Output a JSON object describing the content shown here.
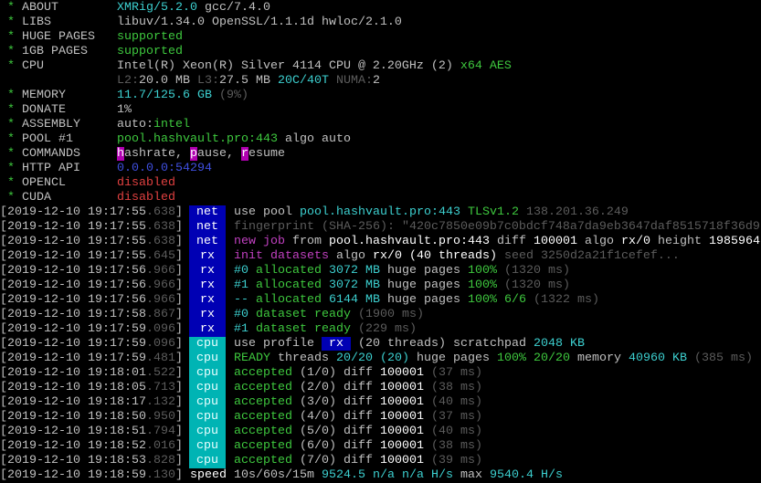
{
  "colors": {
    "tag_blue": "#0000b4",
    "tag_cyan": "#00b4b4",
    "green": "#3ec83e",
    "cyan": "#3ccfcf",
    "magenta": "#c040c0",
    "red": "#e04040",
    "dim": "#5c5c5c"
  },
  "header": [
    {
      "label": "ABOUT",
      "segs": [
        [
          "XMRig/5.2.0",
          "c"
        ],
        [
          " gcc/7.4.0",
          "w"
        ]
      ]
    },
    {
      "label": "LIBS",
      "segs": [
        [
          "libuv/1.34.0 OpenSSL/1.1.1d hwloc/2.1.0",
          "w"
        ]
      ]
    },
    {
      "label": "HUGE PAGES",
      "segs": [
        [
          "supported",
          "g"
        ]
      ]
    },
    {
      "label": "1GB PAGES",
      "segs": [
        [
          "supported",
          "g"
        ]
      ]
    },
    {
      "label": "CPU",
      "segs": [
        [
          "Intel(R) Xeon(R) Silver 4114 CPU @ 2.20GHz (2)",
          "w"
        ],
        [
          " x64 AES",
          "g"
        ]
      ]
    },
    {
      "label": "",
      "segs": [
        [
          "L2:",
          "d"
        ],
        [
          "20.0 MB ",
          "w"
        ],
        [
          "L3:",
          "d"
        ],
        [
          "27.5 MB ",
          "w"
        ],
        [
          "20C/40T",
          "c"
        ],
        [
          " NUMA:",
          "d"
        ],
        [
          "2",
          "w"
        ]
      ]
    },
    {
      "label": "MEMORY",
      "segs": [
        [
          "11.7/125.6 GB",
          "c"
        ],
        [
          " (9%)",
          "d"
        ]
      ]
    },
    {
      "label": "DONATE",
      "segs": [
        [
          "1%",
          "w"
        ]
      ]
    },
    {
      "label": "ASSEMBLY",
      "segs": [
        [
          "auto:",
          "w"
        ],
        [
          "intel",
          "g"
        ]
      ]
    },
    {
      "label": "POOL #1",
      "segs": [
        [
          "pool.hashvault.pro:443",
          "g"
        ],
        [
          " algo auto",
          "w"
        ]
      ]
    },
    {
      "label": "COMMANDS",
      "segs": [
        [
          "h",
          "hl"
        ],
        [
          "ashrate, ",
          "w"
        ],
        [
          "p",
          "hl"
        ],
        [
          "ause, ",
          "w"
        ],
        [
          "r",
          "hl"
        ],
        [
          "esume",
          "w"
        ]
      ]
    },
    {
      "label": "HTTP API",
      "segs": [
        [
          "0.0.0.0:54294",
          "b"
        ]
      ]
    },
    {
      "label": "OPENCL",
      "segs": [
        [
          "disabled",
          "r"
        ]
      ]
    },
    {
      "label": "CUDA",
      "segs": [
        [
          "disabled",
          "r"
        ]
      ]
    }
  ],
  "log": [
    {
      "date": "2019-12-10 19:17:55",
      "ms": ".638",
      "tag": "net",
      "segs": [
        [
          "use pool ",
          "w"
        ],
        [
          "pool.hashvault.pro:443",
          "c"
        ],
        [
          " TLSv1.2",
          "g"
        ],
        [
          " 138.201.36.249",
          "d"
        ]
      ]
    },
    {
      "date": "2019-12-10 19:17:55",
      "ms": ".638",
      "tag": "net",
      "segs": [
        [
          "fingerprint (SHA-256): \"420c7850e09b7c0bdcf748a7da9eb3647daf8515718f36d9",
          "d"
        ]
      ]
    },
    {
      "date": "2019-12-10 19:17:55",
      "ms": ".638",
      "tag": "net",
      "segs": [
        [
          "new job",
          "m"
        ],
        [
          " from ",
          "w"
        ],
        [
          "pool.hashvault.pro:443",
          "bw"
        ],
        [
          " diff ",
          "w"
        ],
        [
          "100001",
          "bw"
        ],
        [
          " algo ",
          "w"
        ],
        [
          "rx/0",
          "bw"
        ],
        [
          " height ",
          "w"
        ],
        [
          "1985964",
          "bw"
        ]
      ]
    },
    {
      "date": "2019-12-10 19:17:55",
      "ms": ".645",
      "tag": "rx",
      "segs": [
        [
          "init datasets",
          "m"
        ],
        [
          " algo ",
          "w"
        ],
        [
          "rx/0",
          "bw"
        ],
        [
          " (40 threads)",
          "bw"
        ],
        [
          " seed 3250d2a21f1cefef...",
          "d"
        ]
      ]
    },
    {
      "date": "2019-12-10 19:17:56",
      "ms": ".966",
      "tag": "rx",
      "segs": [
        [
          "#0",
          "c"
        ],
        [
          " allocated",
          "g"
        ],
        [
          " 3072 MB",
          "c"
        ],
        [
          " huge pages ",
          "w"
        ],
        [
          "100%",
          "g"
        ],
        [
          " (1320 ms)",
          "d"
        ]
      ]
    },
    {
      "date": "2019-12-10 19:17:56",
      "ms": ".966",
      "tag": "rx",
      "segs": [
        [
          "#1",
          "c"
        ],
        [
          " allocated",
          "g"
        ],
        [
          " 3072 MB",
          "c"
        ],
        [
          " huge pages ",
          "w"
        ],
        [
          "100%",
          "g"
        ],
        [
          " (1320 ms)",
          "d"
        ]
      ]
    },
    {
      "date": "2019-12-10 19:17:56",
      "ms": ".966",
      "tag": "rx",
      "segs": [
        [
          "--",
          "c"
        ],
        [
          " allocated",
          "g"
        ],
        [
          " 6144 MB",
          "c"
        ],
        [
          " huge pages ",
          "w"
        ],
        [
          "100% 6/6",
          "g"
        ],
        [
          " (1322 ms)",
          "d"
        ]
      ]
    },
    {
      "date": "2019-12-10 19:17:58",
      "ms": ".867",
      "tag": "rx",
      "segs": [
        [
          "#0",
          "c"
        ],
        [
          " dataset ready",
          "g"
        ],
        [
          " (1900 ms)",
          "d"
        ]
      ]
    },
    {
      "date": "2019-12-10 19:17:59",
      "ms": ".096",
      "tag": "rx",
      "segs": [
        [
          "#1",
          "c"
        ],
        [
          " dataset ready",
          "g"
        ],
        [
          " (229 ms)",
          "d"
        ]
      ]
    },
    {
      "date": "2019-12-10 19:17:59",
      "ms": ".096",
      "tag": "cpu",
      "segs": [
        [
          "use profile ",
          "w"
        ],
        [
          " rx ",
          "tagin"
        ],
        [
          " (20 threads)",
          "w"
        ],
        [
          " scratchpad ",
          "w"
        ],
        [
          "2048 KB",
          "c"
        ]
      ]
    },
    {
      "date": "2019-12-10 19:17:59",
      "ms": ".481",
      "tag": "cpu",
      "segs": [
        [
          "READY",
          "g"
        ],
        [
          " threads ",
          "w"
        ],
        [
          "20/20",
          "c"
        ],
        [
          " (20)",
          "c"
        ],
        [
          " huge pages ",
          "w"
        ],
        [
          "100% 20/20",
          "g"
        ],
        [
          " memory ",
          "w"
        ],
        [
          "40960 KB",
          "c"
        ],
        [
          " (385 ms)",
          "d"
        ]
      ]
    },
    {
      "date": "2019-12-10 19:18:01",
      "ms": ".522",
      "tag": "cpu",
      "segs": [
        [
          "accepted",
          "g"
        ],
        [
          " (1/0)",
          "w"
        ],
        [
          " diff ",
          "w"
        ],
        [
          "100001",
          "bw"
        ],
        [
          " (37 ms)",
          "d"
        ]
      ]
    },
    {
      "date": "2019-12-10 19:18:05",
      "ms": ".713",
      "tag": "cpu",
      "segs": [
        [
          "accepted",
          "g"
        ],
        [
          " (2/0)",
          "w"
        ],
        [
          " diff ",
          "w"
        ],
        [
          "100001",
          "bw"
        ],
        [
          " (38 ms)",
          "d"
        ]
      ]
    },
    {
      "date": "2019-12-10 19:18:17",
      "ms": ".132",
      "tag": "cpu",
      "segs": [
        [
          "accepted",
          "g"
        ],
        [
          " (3/0)",
          "w"
        ],
        [
          " diff ",
          "w"
        ],
        [
          "100001",
          "bw"
        ],
        [
          " (40 ms)",
          "d"
        ]
      ]
    },
    {
      "date": "2019-12-10 19:18:50",
      "ms": ".950",
      "tag": "cpu",
      "segs": [
        [
          "accepted",
          "g"
        ],
        [
          " (4/0)",
          "w"
        ],
        [
          " diff ",
          "w"
        ],
        [
          "100001",
          "bw"
        ],
        [
          " (37 ms)",
          "d"
        ]
      ]
    },
    {
      "date": "2019-12-10 19:18:51",
      "ms": ".794",
      "tag": "cpu",
      "segs": [
        [
          "accepted",
          "g"
        ],
        [
          " (5/0)",
          "w"
        ],
        [
          " diff ",
          "w"
        ],
        [
          "100001",
          "bw"
        ],
        [
          " (40 ms)",
          "d"
        ]
      ]
    },
    {
      "date": "2019-12-10 19:18:52",
      "ms": ".016",
      "tag": "cpu",
      "segs": [
        [
          "accepted",
          "g"
        ],
        [
          " (6/0)",
          "w"
        ],
        [
          " diff ",
          "w"
        ],
        [
          "100001",
          "bw"
        ],
        [
          " (38 ms)",
          "d"
        ]
      ]
    },
    {
      "date": "2019-12-10 19:18:53",
      "ms": ".828",
      "tag": "cpu",
      "segs": [
        [
          "accepted",
          "g"
        ],
        [
          " (7/0)",
          "w"
        ],
        [
          " diff ",
          "w"
        ],
        [
          "100001",
          "bw"
        ],
        [
          " (39 ms)",
          "d"
        ]
      ]
    },
    {
      "date": "2019-12-10 19:18:59",
      "ms": ".130",
      "tag": "",
      "segs": [
        [
          "speed",
          "bw"
        ],
        [
          " 10s/60s/15m ",
          "w"
        ],
        [
          "9524.5",
          "c"
        ],
        [
          " n/a n/a H/s",
          "c"
        ],
        [
          " max ",
          "w"
        ],
        [
          "9540.4 H/s",
          "c"
        ]
      ]
    }
  ]
}
